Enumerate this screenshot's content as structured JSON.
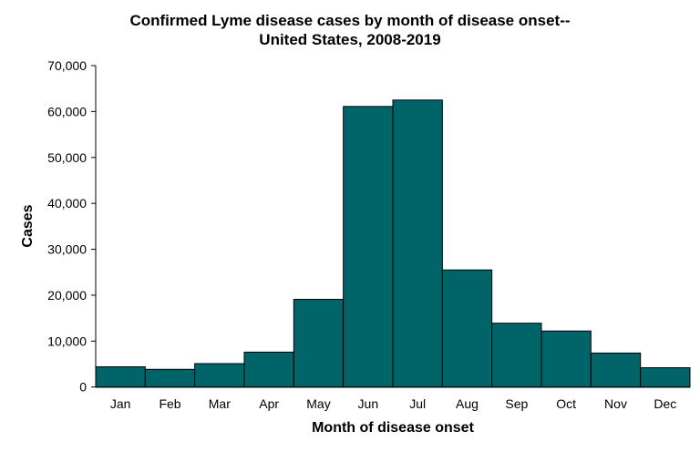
{
  "chart_data": {
    "type": "bar",
    "title": [
      "Confirmed Lyme disease cases by month of disease onset--",
      "United States, 2008-2019"
    ],
    "xlabel": "Month of disease onset",
    "ylabel": "Cases",
    "categories": [
      "Jan",
      "Feb",
      "Mar",
      "Apr",
      "May",
      "Jun",
      "Jul",
      "Aug",
      "Sep",
      "Oct",
      "Nov",
      "Dec"
    ],
    "values": [
      4400,
      3850,
      5100,
      7600,
      19100,
      61100,
      62500,
      25500,
      13900,
      12200,
      7400,
      4200
    ],
    "ylim": [
      0,
      70000
    ],
    "yticks": [
      "0",
      "10,000",
      "20,000",
      "30,000",
      "40,000",
      "50,000",
      "60,000",
      "70,000"
    ],
    "grid": false,
    "bar_color": "#006468"
  }
}
